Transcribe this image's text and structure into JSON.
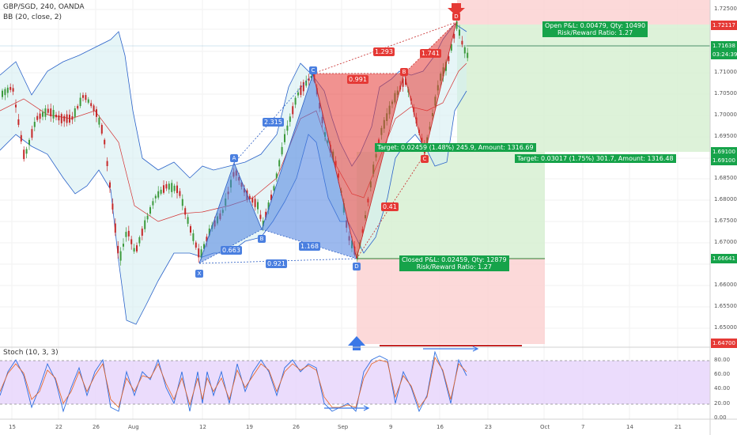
{
  "header": {
    "symbol_line": "GBP/SGD, 240, OANDA",
    "indicator_line": "BB (20, close, 2)"
  },
  "price_axis": {
    "ticks": [
      "1.72500",
      "1.72000",
      "1.71500",
      "1.71000",
      "1.70500",
      "1.70000",
      "1.69500",
      "1.69000",
      "1.68500",
      "1.68000",
      "1.67500",
      "1.67000",
      "1.66500",
      "1.66000",
      "1.65500",
      "1.65000",
      "1.64500"
    ],
    "tags": {
      "target_high": "1.72117",
      "last_price": "1.71638",
      "countdown": "03:24:39",
      "entry_top": "1.69100",
      "entry_bottom": "1.69100",
      "pattern_low": "1.66641",
      "stop_low": "1.64700"
    }
  },
  "date_axis": {
    "labels": [
      "15",
      "22",
      "26",
      "Aug",
      "12",
      "19",
      "26",
      "Sep",
      "9",
      "16",
      "23",
      "Oct",
      "7",
      "14",
      "21"
    ]
  },
  "pattern_points": {
    "bull": {
      "X": "X",
      "A": "A",
      "B": "B",
      "C": "C",
      "D": "D"
    },
    "bear": {
      "C": "C",
      "B": "B",
      "D": "D"
    }
  },
  "ratios": {
    "xb": "0.663",
    "xd": "0.921",
    "bd": "1.168",
    "ac": "2.315",
    "bear_xb": "0.991",
    "bear_bd": "1.293",
    "bear_cd": "1.741",
    "bear_ac": "0.41"
  },
  "positions": {
    "short_open": {
      "line1": "Open P&L: 0.00479, Qty: 10490",
      "line2": "Risk/Reward Ratio: 1.27"
    },
    "long_closed": {
      "line1": "Closed P&L: 0.02459, Qty: 12879",
      "line2": "Risk/Reward Ratio: 1.27"
    },
    "long_target": "Target: 0.02459 (1.48%) 245.9, Amount: 1316.69",
    "short_target": "Target: 0.03017 (1.75%) 301.7, Amount: 1316.48"
  },
  "stoch": {
    "title": "Stoch (10, 3, 3)",
    "ticks": [
      "80.00",
      "60.00",
      "40.00",
      "20.00",
      "0.00"
    ]
  },
  "colors": {
    "bull_pattern": "#4a7fe0",
    "bear_pattern": "#e53935",
    "profit_zone": "#d7f0d2",
    "loss_zone": "#fbd2d2",
    "stoch_band": "#e8d6fb",
    "candle_up": "#3c9a3c",
    "candle_down": "#c62828"
  }
}
